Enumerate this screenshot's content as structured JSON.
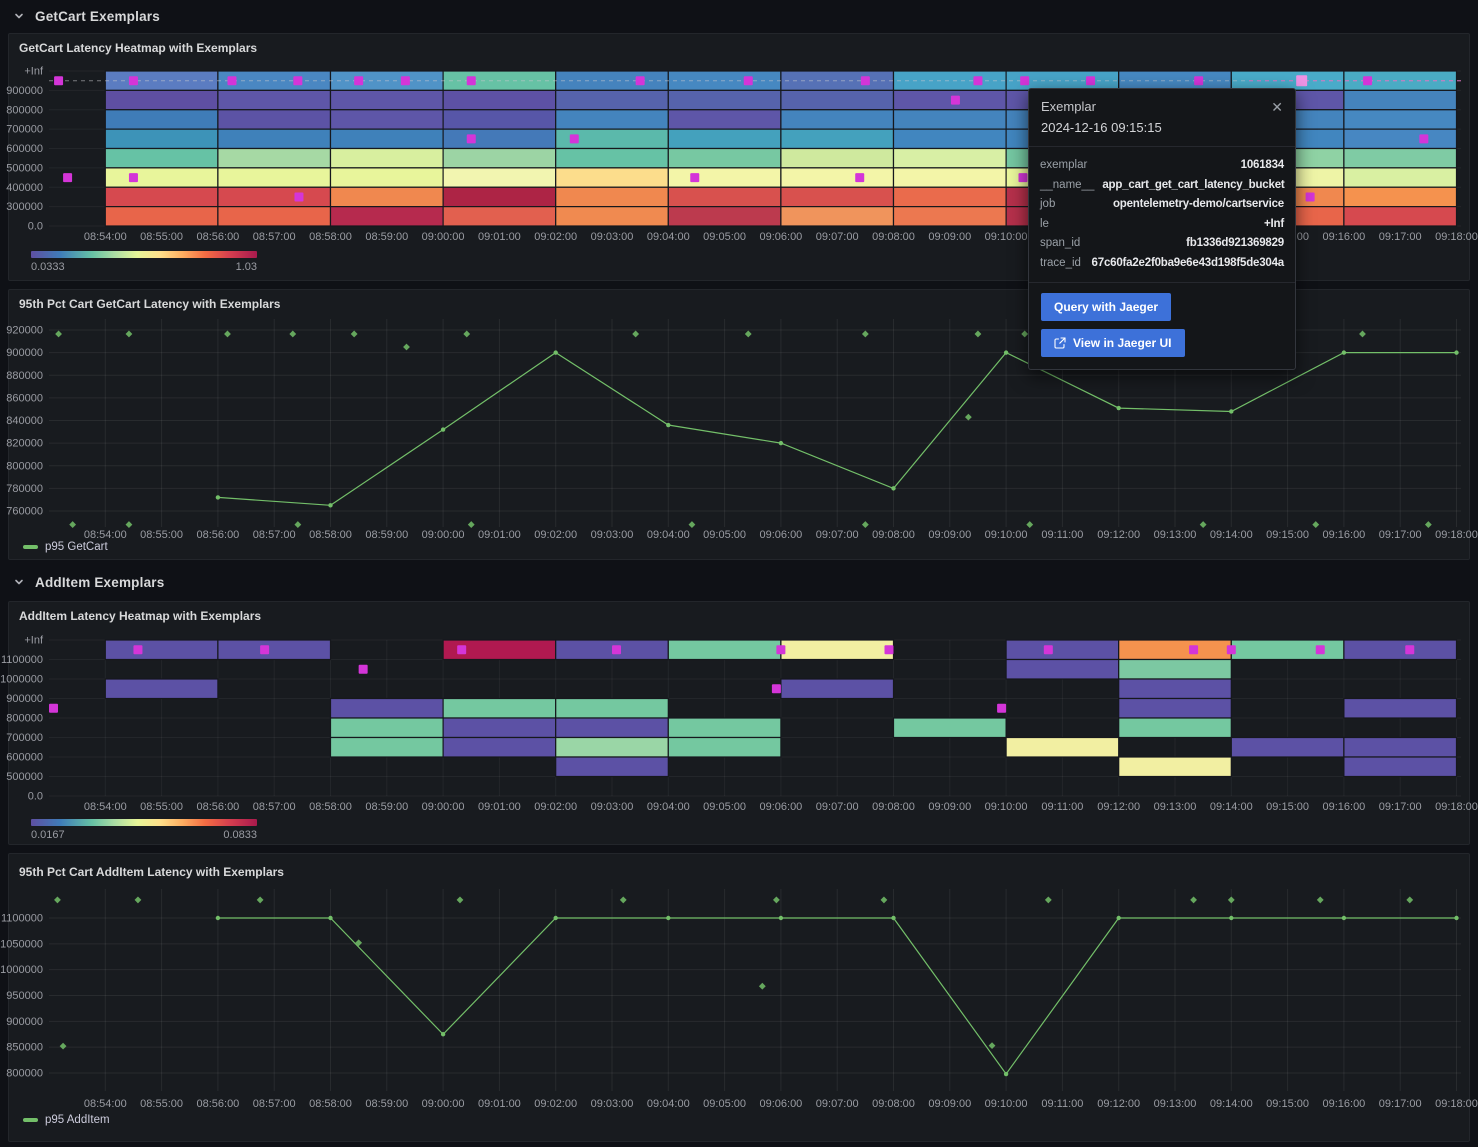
{
  "colors": {
    "exemplar": "#d435d8",
    "exemplar_highlight": "#ef93e4",
    "series_green": "#73bf69",
    "accent_blue": "#3d71d9"
  },
  "sections": [
    {
      "title": "GetCart Exemplars"
    },
    {
      "title": "AddItem Exemplars"
    }
  ],
  "time_labels": [
    "08:54:00",
    "08:55:00",
    "08:56:00",
    "08:57:00",
    "08:58:00",
    "08:59:00",
    "09:00:00",
    "09:01:00",
    "09:02:00",
    "09:03:00",
    "09:04:00",
    "09:05:00",
    "09:06:00",
    "09:07:00",
    "09:08:00",
    "09:09:00",
    "09:10:00",
    "09:11:00",
    "09:12:00",
    "09:13:00",
    "09:14:00",
    "09:15:00",
    "09:16:00",
    "09:17:00",
    "09:18:00"
  ],
  "tooltip": {
    "title": "Exemplar",
    "timestamp": "2024-12-16 09:15:15",
    "rows": [
      {
        "label": "exemplar",
        "value": "1061834"
      },
      {
        "label": "__name__",
        "value": "app_cart_get_cart_latency_bucket"
      },
      {
        "label": "job",
        "value": "opentelemetry-demo/cartservice"
      },
      {
        "label": "le",
        "value": "+Inf"
      },
      {
        "label": "span_id",
        "value": "fb1336d921369829"
      },
      {
        "label": "trace_id",
        "value": "67c60fa2e2f0ba9e6e43d198f5de304a"
      }
    ],
    "buttons": [
      {
        "label": "Query with Jaeger"
      },
      {
        "label": "View in Jaeger UI",
        "icon": "external-link"
      }
    ]
  },
  "chart_data": [
    {
      "type": "heatmap",
      "title": "GetCart Latency Heatmap with Exemplars",
      "t_origin": "08:53:00",
      "y_labels": [
        "+Inf",
        "900000",
        "800000",
        "700000",
        "600000",
        "500000",
        "400000",
        "300000",
        "0.0"
      ],
      "color_scale": {
        "min": "0.0333",
        "max": "1.03"
      },
      "columns": [
        "08:54",
        "08:56",
        "08:58",
        "09:00",
        "09:02",
        "09:04",
        "09:06",
        "09:08",
        "09:10",
        "09:12",
        "09:14",
        "09:16"
      ],
      "rows": [
        [
          "#5b7cc1",
          "#4a87c2",
          "#5093c7",
          "#66c2a5",
          "#4583bd",
          "#4688c1",
          "#5671b6",
          "#47a3c7",
          "#47a3c7",
          "#4688c1",
          "#49abc9",
          "#4aabc4"
        ],
        [
          "#5e4fa2",
          "#5e56a8",
          "#5e56a8",
          "#5d51a5",
          "#5663ac",
          "#5663ac",
          "#5663ac",
          "#5e56a8",
          "#5e56a8",
          "#5e56a8",
          "#5e56a8",
          "#4583bd"
        ],
        [
          "#3f7cb8",
          "#5c53a5",
          "#5e56a8",
          "#5756a8",
          "#4484bd",
          "#5e56a8",
          "#4484bd",
          "#4484bd",
          "#4484bd",
          "#4484bd",
          "#4484bd",
          "#4688c1"
        ],
        [
          "#3d93b8",
          "#3f81ba",
          "#3f81ba",
          "#4479b8",
          "#5bb9ab",
          "#44a1bd",
          "#44a1bd",
          "#4186bf",
          "#4186bf",
          "#44a1bd",
          "#4186bf",
          "#4787c2"
        ],
        [
          "#66c2a5",
          "#a6d9a4",
          "#d8ef9f",
          "#9cd4a4",
          "#66c2a5",
          "#77c8a2",
          "#cfe99e",
          "#d8efa5",
          "#74c6a1",
          "#94d2a4",
          "#8fd2a4",
          "#7fcba4"
        ],
        [
          "#e8f59b",
          "#e8f59b",
          "#e8f59b",
          "#f2f5b0",
          "#fcdd8c",
          "#f3f5a8",
          "#f3f5a8",
          "#f3f5a8",
          "#e8f59b",
          "#e8f59b",
          "#eef4a6",
          "#d9f0a2"
        ],
        [
          "#d6494f",
          "#d6494f",
          "#f0884f",
          "#ad2445",
          "#f0884f",
          "#d8514e",
          "#d8514e",
          "#ea6b4c",
          "#b5304b",
          "#dd5450",
          "#f0884f",
          "#f5924e"
        ],
        [
          "#e8654a",
          "#e8654a",
          "#b62a4e",
          "#e2604f",
          "#f08a50",
          "#bc3a4e",
          "#f0945c",
          "#ec7850",
          "#b5304b",
          "#e8654a",
          "#e8654a",
          "#d6494f"
        ]
      ],
      "exemplars": [
        {
          "t": 0.17,
          "band": 1
        },
        {
          "t": 1.5,
          "band": 1
        },
        {
          "t": 3.25,
          "band": 1
        },
        {
          "t": 4.42,
          "band": 1
        },
        {
          "t": 5.5,
          "band": 1
        },
        {
          "t": 6.33,
          "band": 1
        },
        {
          "t": 7.5,
          "band": 1
        },
        {
          "t": 10.5,
          "band": 1
        },
        {
          "t": 12.42,
          "band": 1
        },
        {
          "t": 14.5,
          "band": 1
        },
        {
          "t": 16.5,
          "band": 1
        },
        {
          "t": 17.33,
          "band": 1
        },
        {
          "t": 18.5,
          "band": 1
        },
        {
          "t": 20.42,
          "band": 1
        },
        {
          "t": 22.25,
          "band": 1,
          "highlight": true
        },
        {
          "t": 23.42,
          "band": 1
        },
        {
          "t": 0.33,
          "band": 6
        },
        {
          "t": 1.5,
          "band": 6
        },
        {
          "t": 4.44,
          "band": 7
        },
        {
          "t": 7.5,
          "band": 4
        },
        {
          "t": 9.33,
          "band": 4
        },
        {
          "t": 11.47,
          "band": 6
        },
        {
          "t": 14.4,
          "band": 6
        },
        {
          "t": 16.1,
          "band": 2
        },
        {
          "t": 17.3,
          "band": 6
        },
        {
          "t": 22.4,
          "band": 7
        },
        {
          "t": 24.42,
          "band": 4
        }
      ],
      "dashed_line_band": 1
    },
    {
      "type": "line",
      "title": "95th Pct Cart GetCart Latency with Exemplars",
      "legend": "p95 GetCart",
      "t_origin": "08:53:00",
      "y_ticks": [
        760000,
        780000,
        800000,
        820000,
        840000,
        860000,
        880000,
        900000,
        920000
      ],
      "points": {
        "times": [
          "08:56:00",
          "08:58:00",
          "09:00:00",
          "09:02:00",
          "09:04:00",
          "09:06:00",
          "09:08:00",
          "09:10:00",
          "09:12:00",
          "09:14:00",
          "09:16:00",
          "09:18:00"
        ],
        "values": [
          772000,
          765000,
          832000,
          900000,
          836000,
          820000,
          780000,
          900000,
          851000,
          848000,
          900000,
          900000
        ]
      },
      "exemplars": [
        {
          "t": 0.17,
          "v": 916500
        },
        {
          "t": 1.42,
          "v": 916500
        },
        {
          "t": 3.17,
          "v": 916500
        },
        {
          "t": 4.33,
          "v": 916500
        },
        {
          "t": 5.42,
          "v": 916500
        },
        {
          "t": 7.42,
          "v": 916500
        },
        {
          "t": 10.42,
          "v": 916500
        },
        {
          "t": 12.42,
          "v": 916500
        },
        {
          "t": 14.5,
          "v": 916500
        },
        {
          "t": 16.5,
          "v": 916500
        },
        {
          "t": 17.33,
          "v": 916500
        },
        {
          "t": 23.33,
          "v": 916500
        },
        {
          "t": 6.35,
          "v": 905000
        },
        {
          "t": 16.33,
          "v": 843000
        },
        {
          "t": 0.42,
          "v": 748000
        },
        {
          "t": 1.42,
          "v": 748000
        },
        {
          "t": 4.42,
          "v": 748000
        },
        {
          "t": 7.5,
          "v": 748000
        },
        {
          "t": 11.42,
          "v": 748000
        },
        {
          "t": 14.5,
          "v": 748000
        },
        {
          "t": 17.42,
          "v": 748000
        },
        {
          "t": 20.5,
          "v": 748000
        },
        {
          "t": 22.5,
          "v": 748000
        },
        {
          "t": 24.5,
          "v": 748000
        }
      ]
    },
    {
      "type": "heatmap",
      "title": "AddItem Latency Heatmap with Exemplars",
      "t_origin": "08:53:00",
      "y_labels": [
        "+Inf",
        "1100000",
        "1000000",
        "900000",
        "800000",
        "700000",
        "600000",
        "500000",
        "0.0"
      ],
      "color_scale": {
        "min": "0.0167",
        "max": "0.0833"
      },
      "columns": [
        "08:54",
        "08:56",
        "08:58",
        "09:00",
        "09:02",
        "09:04",
        "09:06",
        "09:08",
        "09:10",
        "09:12",
        "09:14",
        "09:16"
      ],
      "rows": [
        [
          "#5c51a5",
          "#5c51a5",
          null,
          "#b01950",
          "#5c51a5",
          "#74c8a0",
          "#f2efa2",
          null,
          "#5c51a5",
          "#f5924e",
          "#74c8a0",
          "#5c51a5"
        ],
        [
          null,
          null,
          null,
          null,
          null,
          null,
          null,
          null,
          "#5c51a5",
          "#7cc8a2",
          null,
          null
        ],
        [
          "#5c51a5",
          null,
          null,
          null,
          null,
          null,
          "#5c51a5",
          null,
          null,
          "#5c51a5",
          null,
          null
        ],
        [
          null,
          null,
          "#5c51a5",
          "#74c8a0",
          "#74c8a0",
          null,
          null,
          null,
          null,
          "#5c51a5",
          null,
          "#5c51a5"
        ],
        [
          null,
          null,
          "#74c8a0",
          "#5c51a5",
          "#5c51a5",
          "#74c8a0",
          null,
          "#74c8a0",
          null,
          "#74c8a0",
          null,
          null
        ],
        [
          null,
          null,
          "#74c8a0",
          "#5c51a5",
          "#9ad6a6",
          "#74c8a0",
          null,
          null,
          "#f2efa2",
          null,
          "#5c51a5",
          "#5c51a5"
        ],
        [
          null,
          null,
          null,
          null,
          "#5c51a5",
          null,
          null,
          null,
          null,
          "#f2efa2",
          null,
          "#5c51a5"
        ],
        [
          null,
          null,
          null,
          null,
          null,
          null,
          null,
          null,
          null,
          null,
          null,
          null
        ]
      ],
      "exemplars": [
        {
          "t": 1.58,
          "band": 1
        },
        {
          "t": 3.83,
          "band": 1
        },
        {
          "t": 7.33,
          "band": 1
        },
        {
          "t": 10.08,
          "band": 1
        },
        {
          "t": 13.0,
          "band": 1
        },
        {
          "t": 14.92,
          "band": 1
        },
        {
          "t": 17.75,
          "band": 1
        },
        {
          "t": 20.33,
          "band": 1
        },
        {
          "t": 21.0,
          "band": 1
        },
        {
          "t": 22.58,
          "band": 1
        },
        {
          "t": 24.17,
          "band": 1
        },
        {
          "t": 5.58,
          "band": 2
        },
        {
          "t": 12.92,
          "band": 3
        },
        {
          "t": 0.08,
          "band": 4
        },
        {
          "t": 16.92,
          "band": 4
        }
      ]
    },
    {
      "type": "line",
      "title": "95th Pct Cart AddItem Latency with Exemplars",
      "legend": "p95 AddItem",
      "t_origin": "08:53:00",
      "y_ticks": [
        800000,
        850000,
        900000,
        950000,
        1000000,
        1050000,
        1100000
      ],
      "points": {
        "times": [
          "08:56:00",
          "08:58:00",
          "09:00:00",
          "09:02:00",
          "09:04:00",
          "09:06:00",
          "09:08:00",
          "09:10:00",
          "09:12:00",
          "09:14:00",
          "09:16:00",
          "09:18:00"
        ],
        "values": [
          1100000,
          1100000,
          875000,
          1100000,
          1100000,
          1100000,
          1100000,
          798000,
          1100000,
          1100000,
          1100000,
          1100000
        ]
      },
      "exemplars": [
        {
          "t": 0.15,
          "v": 1135000
        },
        {
          "t": 1.58,
          "v": 1135000
        },
        {
          "t": 3.75,
          "v": 1135000
        },
        {
          "t": 7.3,
          "v": 1135000
        },
        {
          "t": 10.2,
          "v": 1135000
        },
        {
          "t": 12.92,
          "v": 1135000
        },
        {
          "t": 14.83,
          "v": 1135000
        },
        {
          "t": 17.75,
          "v": 1135000
        },
        {
          "t": 20.33,
          "v": 1135000
        },
        {
          "t": 21.0,
          "v": 1135000
        },
        {
          "t": 22.58,
          "v": 1135000
        },
        {
          "t": 24.17,
          "v": 1135000
        },
        {
          "t": 0.25,
          "v": 852000
        },
        {
          "t": 5.5,
          "v": 1052000
        },
        {
          "t": 12.67,
          "v": 968000
        },
        {
          "t": 16.75,
          "v": 853000
        }
      ]
    }
  ]
}
